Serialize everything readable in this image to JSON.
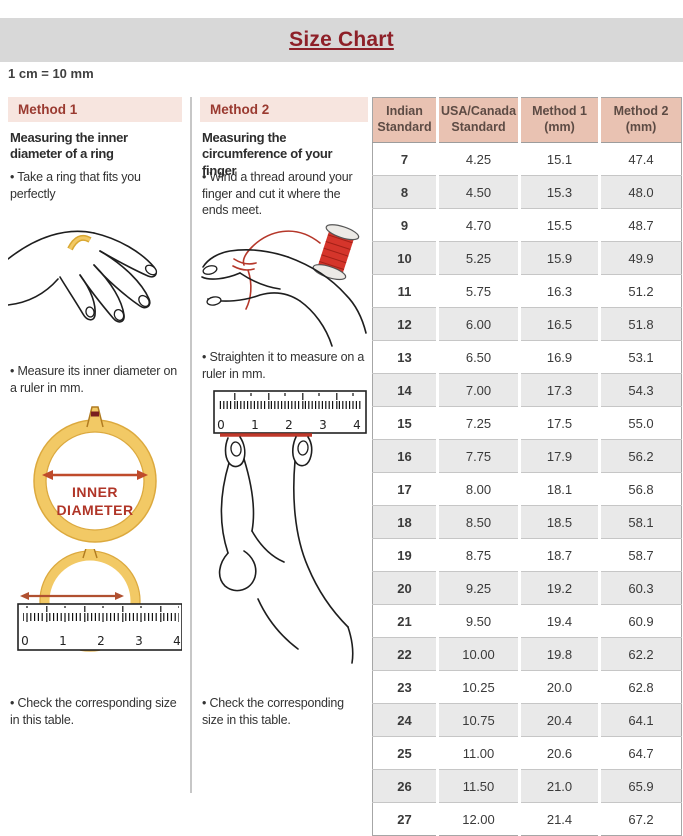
{
  "page": {
    "title": "Size Chart",
    "scale_note": "1 cm = 10 mm"
  },
  "method1": {
    "label": "Method 1",
    "subtitle": "Measuring the inner diameter of a ring",
    "step1": "Take a ring that fits you perfectly",
    "step2": "Measure its inner diameter on a ruler in mm.",
    "step3": "Check the corresponding size in this table.",
    "diagram_label": [
      "INNER",
      "DIAMETER"
    ],
    "ruler_ticks": [
      "0",
      "1",
      "2",
      "3",
      "4"
    ]
  },
  "method2": {
    "label": "Method 2",
    "subtitle": "Measuring the circumference of your finger",
    "step1": "Wind a thread around your finger and cut it where the ends meet.",
    "step2": "Straighten it to measure on a ruler in mm.",
    "step3": "Check the corresponding size in this table.",
    "ruler_ticks": [
      "0",
      "1",
      "2",
      "3",
      "4"
    ]
  },
  "table": {
    "headers": [
      "Indian Standard",
      "USA/Canada Standard",
      "Method 1 (mm)",
      "Method 2 (mm)"
    ],
    "rows": [
      [
        "7",
        "4.25",
        "15.1",
        "47.4"
      ],
      [
        "8",
        "4.50",
        "15.3",
        "48.0"
      ],
      [
        "9",
        "4.70",
        "15.5",
        "48.7"
      ],
      [
        "10",
        "5.25",
        "15.9",
        "49.9"
      ],
      [
        "11",
        "5.75",
        "16.3",
        "51.2"
      ],
      [
        "12",
        "6.00",
        "16.5",
        "51.8"
      ],
      [
        "13",
        "6.50",
        "16.9",
        "53.1"
      ],
      [
        "14",
        "7.00",
        "17.3",
        "54.3"
      ],
      [
        "15",
        "7.25",
        "17.5",
        "55.0"
      ],
      [
        "16",
        "7.75",
        "17.9",
        "56.2"
      ],
      [
        "17",
        "8.00",
        "18.1",
        "56.8"
      ],
      [
        "18",
        "8.50",
        "18.5",
        "58.1"
      ],
      [
        "19",
        "8.75",
        "18.7",
        "58.7"
      ],
      [
        "20",
        "9.25",
        "19.2",
        "60.3"
      ],
      [
        "21",
        "9.50",
        "19.4",
        "60.9"
      ],
      [
        "22",
        "10.00",
        "19.8",
        "62.2"
      ],
      [
        "23",
        "10.25",
        "20.0",
        "62.8"
      ],
      [
        "24",
        "10.75",
        "20.4",
        "64.1"
      ],
      [
        "25",
        "11.00",
        "20.6",
        "64.7"
      ],
      [
        "26",
        "11.50",
        "21.0",
        "65.9"
      ],
      [
        "27",
        "12.00",
        "21.4",
        "67.2"
      ]
    ]
  },
  "colors": {
    "title_red": "#8e2028",
    "method_header_bg": "#f7e5df",
    "method_header_text": "#9a3a30",
    "table_header_bg": "#e9c2b2",
    "table_header_text": "#5d4b44",
    "row_alt_bg": "#e9e9e9",
    "ring_gold": "#f2c965",
    "accent_red": "#b5372a"
  }
}
